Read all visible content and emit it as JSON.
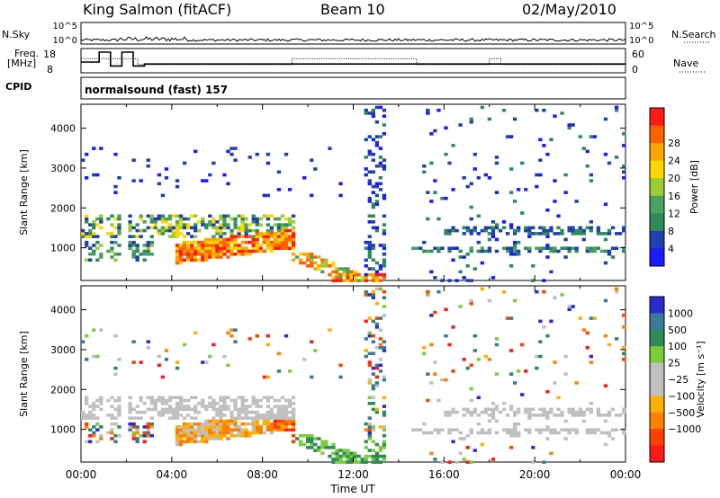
{
  "header": {
    "station": "King Salmon (fitACF)",
    "beam": "Beam 10",
    "date": "02/May/2010"
  },
  "side_labels": {
    "nsky": "N.Sky",
    "nsearch": "N.Search",
    "freq_line1": "Freq.",
    "freq_line2": "[MHz]",
    "nave": "Nave",
    "cpid": "CPID"
  },
  "cpid_text": "normalsound (fast) 157",
  "colors": {
    "power": [
      "#1a1aff",
      "#2040b0",
      "#2e8b57",
      "#4ca060",
      "#9acd32",
      "#ffd700",
      "#ffa500",
      "#ff6000",
      "#ff1a1a"
    ],
    "velocity": [
      "#2b2bd0",
      "#3a7a9a",
      "#2e8b57",
      "#7ccd3c",
      "#c0c0c0",
      "#c0c0c0",
      "#ffb000",
      "#ff8000",
      "#ff4000",
      "#ff1a1a"
    ]
  },
  "chart_data": [
    {
      "name": "nsky-nsearch",
      "type": "line",
      "yticks_left": [
        "10^5",
        "10^0"
      ],
      "yticks_right": [
        "10^5",
        "10^0"
      ],
      "xlim": [
        0,
        24
      ]
    },
    {
      "name": "freq-nave",
      "type": "line",
      "yticks_left": [
        "18",
        "8"
      ],
      "yticks_right": [
        "60",
        "0"
      ],
      "freq_series": {
        "x": [
          0,
          0.8,
          0.8,
          1.3,
          1.3,
          1.8,
          1.8,
          2.3,
          2.3,
          2.8,
          2.8,
          24
        ],
        "y": [
          13,
          13,
          18,
          18,
          11,
          11,
          18,
          18,
          11,
          11,
          12,
          12
        ]
      },
      "nave_series": {
        "x": [
          0,
          2.5,
          2.5,
          9.3,
          9.3,
          14.8,
          14.8,
          18.0,
          18.0,
          18.5,
          18.5,
          24
        ],
        "y": [
          40,
          40,
          22,
          22,
          40,
          40,
          22,
          22,
          40,
          40,
          22,
          22
        ]
      },
      "xlim": [
        0,
        24
      ]
    },
    {
      "name": "power",
      "type": "heatmap",
      "ylabel": "Slant Range [km]",
      "yticks": [
        1000,
        2000,
        3000,
        4000
      ],
      "ylim": [
        180,
        4600
      ],
      "xlim": [
        0,
        24
      ],
      "colorbar_label": "Power [dB]",
      "colorbar_ticks": [
        4,
        8,
        12,
        16,
        20,
        24,
        28
      ]
    },
    {
      "name": "velocity",
      "type": "heatmap",
      "ylabel": "Slant Range [km]",
      "yticks": [
        1000,
        2000,
        3000,
        4000
      ],
      "ylim": [
        180,
        4600
      ],
      "xlim": [
        0,
        24
      ],
      "xlabel": "Time UT",
      "xticks": [
        "00:00",
        "04:00",
        "08:00",
        "12:00",
        "16:00",
        "20:00",
        "00:00"
      ],
      "colorbar_label": "Velocity [m s⁻¹]",
      "colorbar_ticks": [
        "1000",
        "500",
        "100",
        "25",
        "−25",
        "−100",
        "−500",
        "−1000"
      ]
    }
  ]
}
